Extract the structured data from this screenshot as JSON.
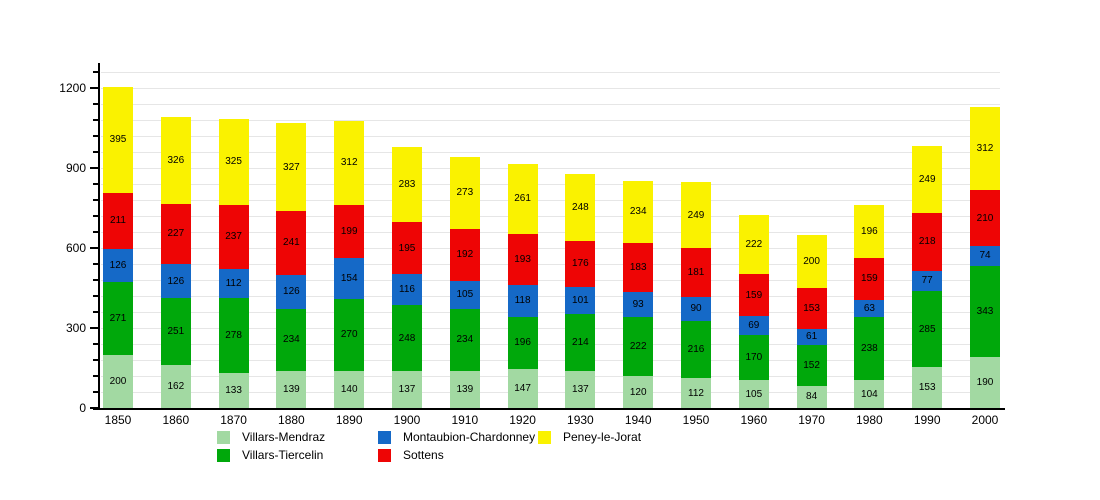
{
  "chart_data": {
    "type": "bar",
    "stacked": true,
    "title": "",
    "xlabel": "",
    "ylabel": "",
    "categories": [
      "1850",
      "1860",
      "1870",
      "1880",
      "1890",
      "1900",
      "1910",
      "1920",
      "1930",
      "1940",
      "1950",
      "1960",
      "1970",
      "1980",
      "1990",
      "2000"
    ],
    "series": [
      {
        "name": "Villars-Mendraz",
        "color": "#a2d9a2",
        "values": [
          200,
          162,
          133,
          139,
          140,
          137,
          139,
          147,
          137,
          120,
          112,
          105,
          84,
          104,
          153,
          190
        ]
      },
      {
        "name": "Villars-Tiercelin",
        "color": "#00a80b",
        "values": [
          271,
          251,
          278,
          234,
          270,
          248,
          234,
          196,
          214,
          222,
          216,
          170,
          152,
          238,
          285,
          343
        ]
      },
      {
        "name": "Montaubion-Chardonney",
        "color": "#1569c7",
        "values": [
          126,
          126,
          112,
          126,
          154,
          116,
          105,
          118,
          101,
          93,
          90,
          69,
          61,
          63,
          77,
          74
        ]
      },
      {
        "name": "Sottens",
        "color": "#ee0505",
        "values": [
          211,
          227,
          237,
          241,
          199,
          195,
          192,
          193,
          176,
          183,
          181,
          159,
          153,
          159,
          218,
          210
        ]
      },
      {
        "name": "Peney-le-Jorat",
        "color": "#faf200",
        "values": [
          395,
          326,
          325,
          327,
          312,
          283,
          273,
          261,
          248,
          234,
          249,
          222,
          200,
          196,
          249,
          312
        ]
      }
    ],
    "yticks": [
      0,
      300,
      600,
      900,
      1200
    ],
    "ylim": [
      0,
      1280
    ],
    "minor_step": 60,
    "minor_max": 1260,
    "grid": true,
    "legend_position": "bottom",
    "legend_columns": [
      [
        0,
        1
      ],
      [
        2,
        3
      ],
      [
        4
      ]
    ],
    "value_labels": true
  }
}
